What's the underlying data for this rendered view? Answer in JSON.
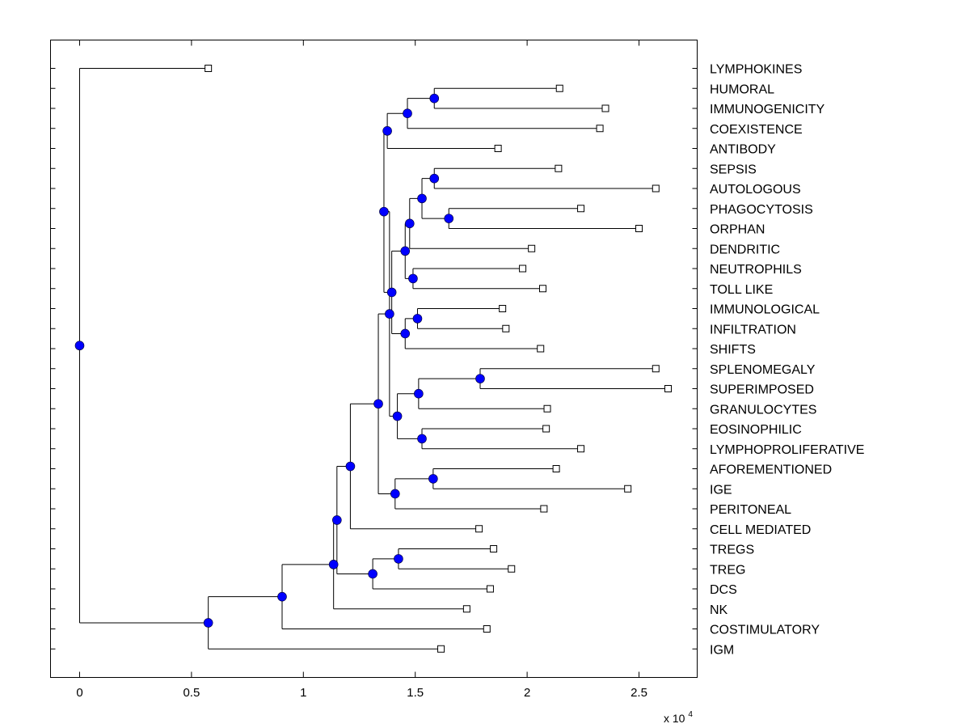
{
  "chart_data": {
    "type": "dendrogram",
    "orientation": "horizontal",
    "title": "",
    "xlabel": "",
    "ylabel": "",
    "x_multiplier_label": "x 10",
    "x_multiplier_exponent": "4",
    "xlim": [
      -0.13,
      2.76
    ],
    "xticks": [
      0,
      0.5,
      1,
      1.5,
      2,
      2.5
    ],
    "xtick_labels": [
      "0",
      "0.5",
      "1",
      "1.5",
      "2",
      "2.5"
    ],
    "leaves": [
      {
        "label": "LYMPHOKINES",
        "x": 0.575
      },
      {
        "label": "HUMORAL",
        "x": 2.145
      },
      {
        "label": "IMMUNOGENICITY",
        "x": 2.35
      },
      {
        "label": "COEXISTENCE",
        "x": 2.325
      },
      {
        "label": "ANTIBODY",
        "x": 1.87
      },
      {
        "label": "SEPSIS",
        "x": 2.14
      },
      {
        "label": "AUTOLOGOUS",
        "x": 2.575
      },
      {
        "label": "PHAGOCYTOSIS",
        "x": 2.24
      },
      {
        "label": "ORPHAN",
        "x": 2.5
      },
      {
        "label": "DENDRITIC",
        "x": 2.02
      },
      {
        "label": "NEUTROPHILS",
        "x": 1.98
      },
      {
        "label": "TOLL LIKE",
        "x": 2.07
      },
      {
        "label": "IMMUNOLOGICAL",
        "x": 1.89
      },
      {
        "label": "INFILTRATION",
        "x": 1.905
      },
      {
        "label": "SHIFTS",
        "x": 2.06
      },
      {
        "label": "SPLENOMEGALY",
        "x": 2.575
      },
      {
        "label": "SUPERIMPOSED",
        "x": 2.63
      },
      {
        "label": "GRANULOCYTES",
        "x": 2.09
      },
      {
        "label": "EOSINOPHILIC",
        "x": 2.085
      },
      {
        "label": "LYMPHOPROLIFERATIVE",
        "x": 2.24
      },
      {
        "label": "AFOREMENTIONED",
        "x": 2.13
      },
      {
        "label": "IGE",
        "x": 2.45
      },
      {
        "label": "PERITONEAL",
        "x": 2.075
      },
      {
        "label": "CELL MEDIATED",
        "x": 1.785
      },
      {
        "label": "TREGS",
        "x": 1.85
      },
      {
        "label": "TREG",
        "x": 1.93
      },
      {
        "label": "DCS",
        "x": 1.835
      },
      {
        "label": "NK",
        "x": 1.73
      },
      {
        "label": "COSTIMULATORY",
        "x": 1.82
      },
      {
        "label": "IGM",
        "x": 1.615
      }
    ],
    "merges": [
      {
        "id": "n1",
        "x": 1.585,
        "children": [
          "HUMORAL",
          "IMMUNOGENICITY"
        ]
      },
      {
        "id": "n2",
        "x": 1.465,
        "children": [
          "n1",
          "COEXISTENCE"
        ]
      },
      {
        "id": "n3",
        "x": 1.375,
        "children": [
          "n2",
          "ANTIBODY"
        ]
      },
      {
        "id": "n4",
        "x": 1.585,
        "children": [
          "SEPSIS",
          "AUTOLOGOUS"
        ]
      },
      {
        "id": "n5",
        "x": 1.65,
        "children": [
          "PHAGOCYTOSIS",
          "ORPHAN"
        ]
      },
      {
        "id": "n6",
        "x": 1.53,
        "children": [
          "n4",
          "n5"
        ]
      },
      {
        "id": "n7",
        "x": 1.475,
        "children": [
          "n6",
          "DENDRITIC"
        ]
      },
      {
        "id": "n8",
        "x": 1.49,
        "children": [
          "NEUTROPHILS",
          "TOLL LIKE"
        ]
      },
      {
        "id": "n9",
        "x": 1.455,
        "children": [
          "n7",
          "n8"
        ]
      },
      {
        "id": "n10",
        "x": 1.51,
        "children": [
          "IMMUNOLOGICAL",
          "INFILTRATION"
        ]
      },
      {
        "id": "n11",
        "x": 1.455,
        "children": [
          "n10",
          "SHIFTS"
        ]
      },
      {
        "id": "n12",
        "x": 1.395,
        "children": [
          "n9",
          "n11"
        ]
      },
      {
        "id": "n13",
        "x": 1.36,
        "children": [
          "n3",
          "n12"
        ]
      },
      {
        "id": "n14",
        "x": 1.79,
        "children": [
          "SPLENOMEGALY",
          "SUPERIMPOSED"
        ]
      },
      {
        "id": "n15",
        "x": 1.515,
        "children": [
          "n14",
          "GRANULOCYTES"
        ]
      },
      {
        "id": "n16",
        "x": 1.53,
        "children": [
          "EOSINOPHILIC",
          "LYMPHOPROLIFERATIVE"
        ]
      },
      {
        "id": "n17",
        "x": 1.42,
        "children": [
          "n15",
          "n16"
        ]
      },
      {
        "id": "n18",
        "x": 1.385,
        "children": [
          "n13",
          "n17"
        ]
      },
      {
        "id": "n19",
        "x": 1.58,
        "children": [
          "AFOREMENTIONED",
          "IGE"
        ]
      },
      {
        "id": "n20",
        "x": 1.41,
        "children": [
          "n19",
          "PERITONEAL"
        ]
      },
      {
        "id": "n21",
        "x": 1.335,
        "children": [
          "n18",
          "n20"
        ]
      },
      {
        "id": "n22",
        "x": 1.21,
        "children": [
          "n21",
          "CELL MEDIATED"
        ]
      },
      {
        "id": "n23",
        "x": 1.425,
        "children": [
          "TREGS",
          "TREG"
        ]
      },
      {
        "id": "n24",
        "x": 1.31,
        "children": [
          "n23",
          "DCS"
        ]
      },
      {
        "id": "n25",
        "x": 1.15,
        "children": [
          "n22",
          "n24"
        ]
      },
      {
        "id": "n26",
        "x": 1.135,
        "children": [
          "n25",
          "NK"
        ]
      },
      {
        "id": "n27",
        "x": 0.905,
        "children": [
          "n26",
          "COSTIMULATORY"
        ]
      },
      {
        "id": "n28",
        "x": 0.575,
        "children": [
          "n27",
          "IGM"
        ]
      },
      {
        "id": "n29",
        "x": 0.0,
        "children": [
          "LYMPHOKINES",
          "n28"
        ]
      }
    ],
    "colors": {
      "node_fill": "#0000ff",
      "leaf_marker_fill": "#ffffff",
      "line": "#000000",
      "background": "#ffffff"
    }
  }
}
